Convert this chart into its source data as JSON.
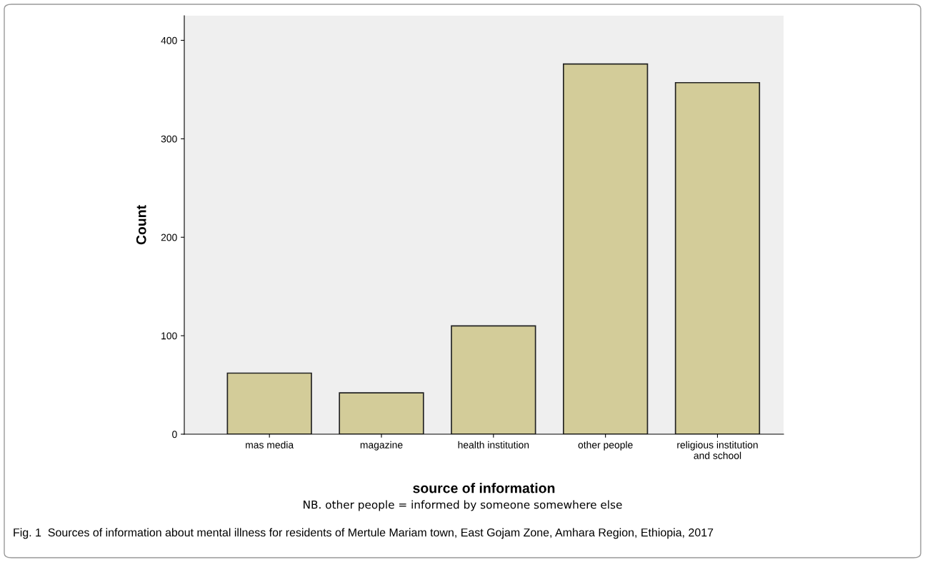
{
  "chart_data": {
    "type": "bar",
    "categories": [
      "mas media",
      "magazine",
      "health institution",
      "other people",
      "religious institution\nand school"
    ],
    "values": [
      62,
      42,
      110,
      376,
      357
    ],
    "color": "#d3cc99",
    "xlabel": "source of information",
    "ylabel": "Count",
    "ylim": [
      0,
      425
    ],
    "yticks": [
      0,
      100,
      200,
      300,
      400
    ],
    "grid": false,
    "legend": false,
    "annotations": [
      "NB. other people = informed by someone somewhere else",
      "Fig. 1  Sources of information about mental illness for residents of Mertule Mariam town, East Gojam Zone, Amhara Region, Ethiopia, 2017"
    ]
  }
}
